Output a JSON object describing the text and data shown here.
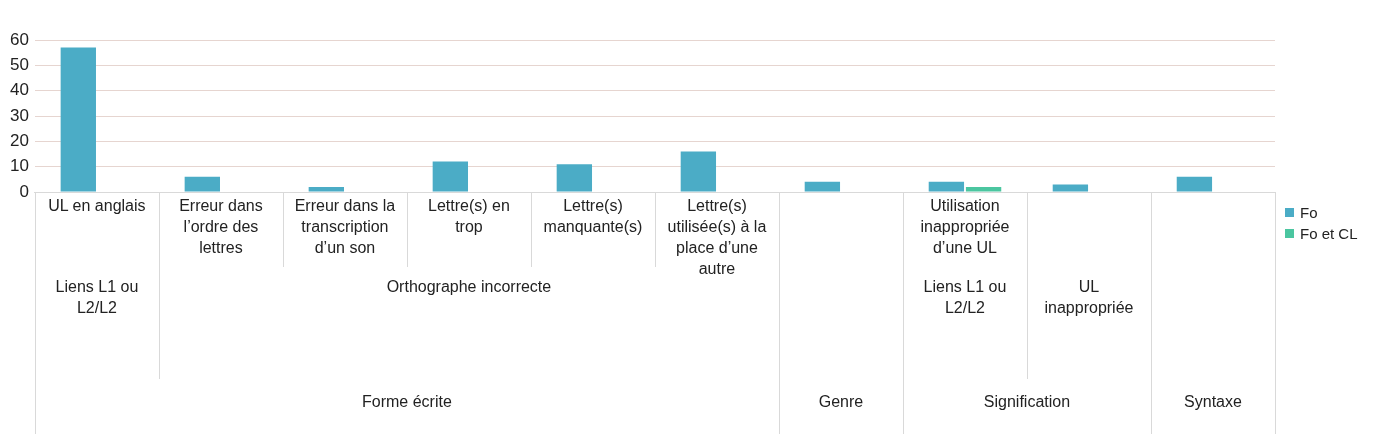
{
  "chart_data": {
    "type": "bar",
    "categories": [
      [
        "UL en anglais",
        "Liens L1 ou L2/L2",
        "Forme écrite"
      ],
      [
        "Erreur dans l’ordre des lettres",
        "Orthographe incorrecte",
        null
      ],
      [
        "Erreur dans la transcription d’un son",
        null,
        null
      ],
      [
        "Lettre(s) en trop",
        null,
        null
      ],
      [
        "Lettre(s) manquante(s)",
        null,
        null
      ],
      [
        "Lettre(s) utilisée(s) à la place d’une autre",
        null,
        null
      ],
      [
        null,
        null,
        "Genre"
      ],
      [
        "Utilisation inappropriée d’une UL",
        "Liens L1 ou L2/L2",
        "Signification"
      ],
      [
        null,
        "UL inappropriée",
        null
      ],
      [
        null,
        null,
        "Syntaxe"
      ]
    ],
    "series": [
      {
        "name": "Fo",
        "color": "#4bacc6",
        "values": [
          57,
          6,
          2,
          12,
          11,
          16,
          4,
          4,
          3,
          6
        ]
      },
      {
        "name": "Fo et CL",
        "color": "#4bc6a0",
        "values": [
          null,
          null,
          null,
          null,
          null,
          null,
          null,
          2,
          null,
          null
        ]
      }
    ],
    "ylim": [
      0,
      60
    ],
    "yticks": [
      0,
      10,
      20,
      30,
      40,
      50,
      60
    ],
    "grid": "y",
    "legend": "right"
  }
}
